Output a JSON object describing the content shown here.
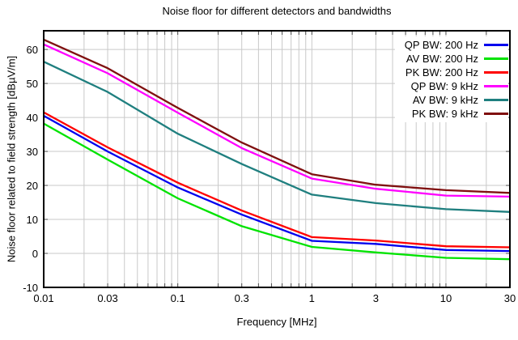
{
  "chart_data": {
    "type": "line",
    "title": "Noise floor for different detectors and bandwidths",
    "xlabel": "Frequency [MHz]",
    "ylabel": "Noise floor related to field strength [dBµV/m]",
    "x_scale": "log",
    "xlim": [
      0.01,
      30
    ],
    "ylim": [
      -10,
      65.5
    ],
    "x_ticks": [
      0.01,
      0.03,
      0.1,
      0.3,
      1,
      3,
      10,
      30
    ],
    "x_tick_labels": [
      "0.01",
      "0.03",
      "0.1",
      "0.3",
      "1",
      "3",
      "10",
      "30"
    ],
    "y_ticks": [
      -10,
      0,
      10,
      20,
      30,
      40,
      50,
      60
    ],
    "grid": true,
    "legend_position": "top-right-inside",
    "colors": {
      "grid": "#c9c9c9",
      "axis_box": "#000000",
      "tick": "#4d4d4d",
      "background": "#ffffff"
    },
    "x": [
      0.01,
      0.03,
      0.1,
      0.3,
      1,
      3,
      10,
      30
    ],
    "series": [
      {
        "name": "QP BW: 200 Hz",
        "color": "#0000ee",
        "values": [
          40.5,
          30.0,
          19.4,
          11.4,
          3.7,
          2.8,
          1.0,
          0.7
        ]
      },
      {
        "name": "AV BW: 200 Hz",
        "color": "#00e300",
        "values": [
          38.2,
          27.6,
          16.2,
          8.0,
          1.9,
          0.3,
          -1.3,
          -1.7
        ]
      },
      {
        "name": "PK BW: 200 Hz",
        "color": "#ff0000",
        "values": [
          41.5,
          31.2,
          20.8,
          12.6,
          4.8,
          3.8,
          2.1,
          1.8
        ]
      },
      {
        "name": "QP BW: 9 kHz",
        "color": "#ff00ff",
        "values": [
          61.5,
          53.0,
          41.4,
          31.0,
          22.0,
          19.0,
          17.0,
          16.7
        ]
      },
      {
        "name": "AV BW: 9 kHz",
        "color": "#1f7f7f",
        "values": [
          56.4,
          47.5,
          35.2,
          26.3,
          17.3,
          14.8,
          13.0,
          12.2
        ]
      },
      {
        "name": "PK BW: 9 kHz",
        "color": "#7f0f0f",
        "values": [
          62.9,
          54.5,
          42.8,
          32.6,
          23.3,
          20.2,
          18.6,
          17.8
        ]
      }
    ]
  }
}
